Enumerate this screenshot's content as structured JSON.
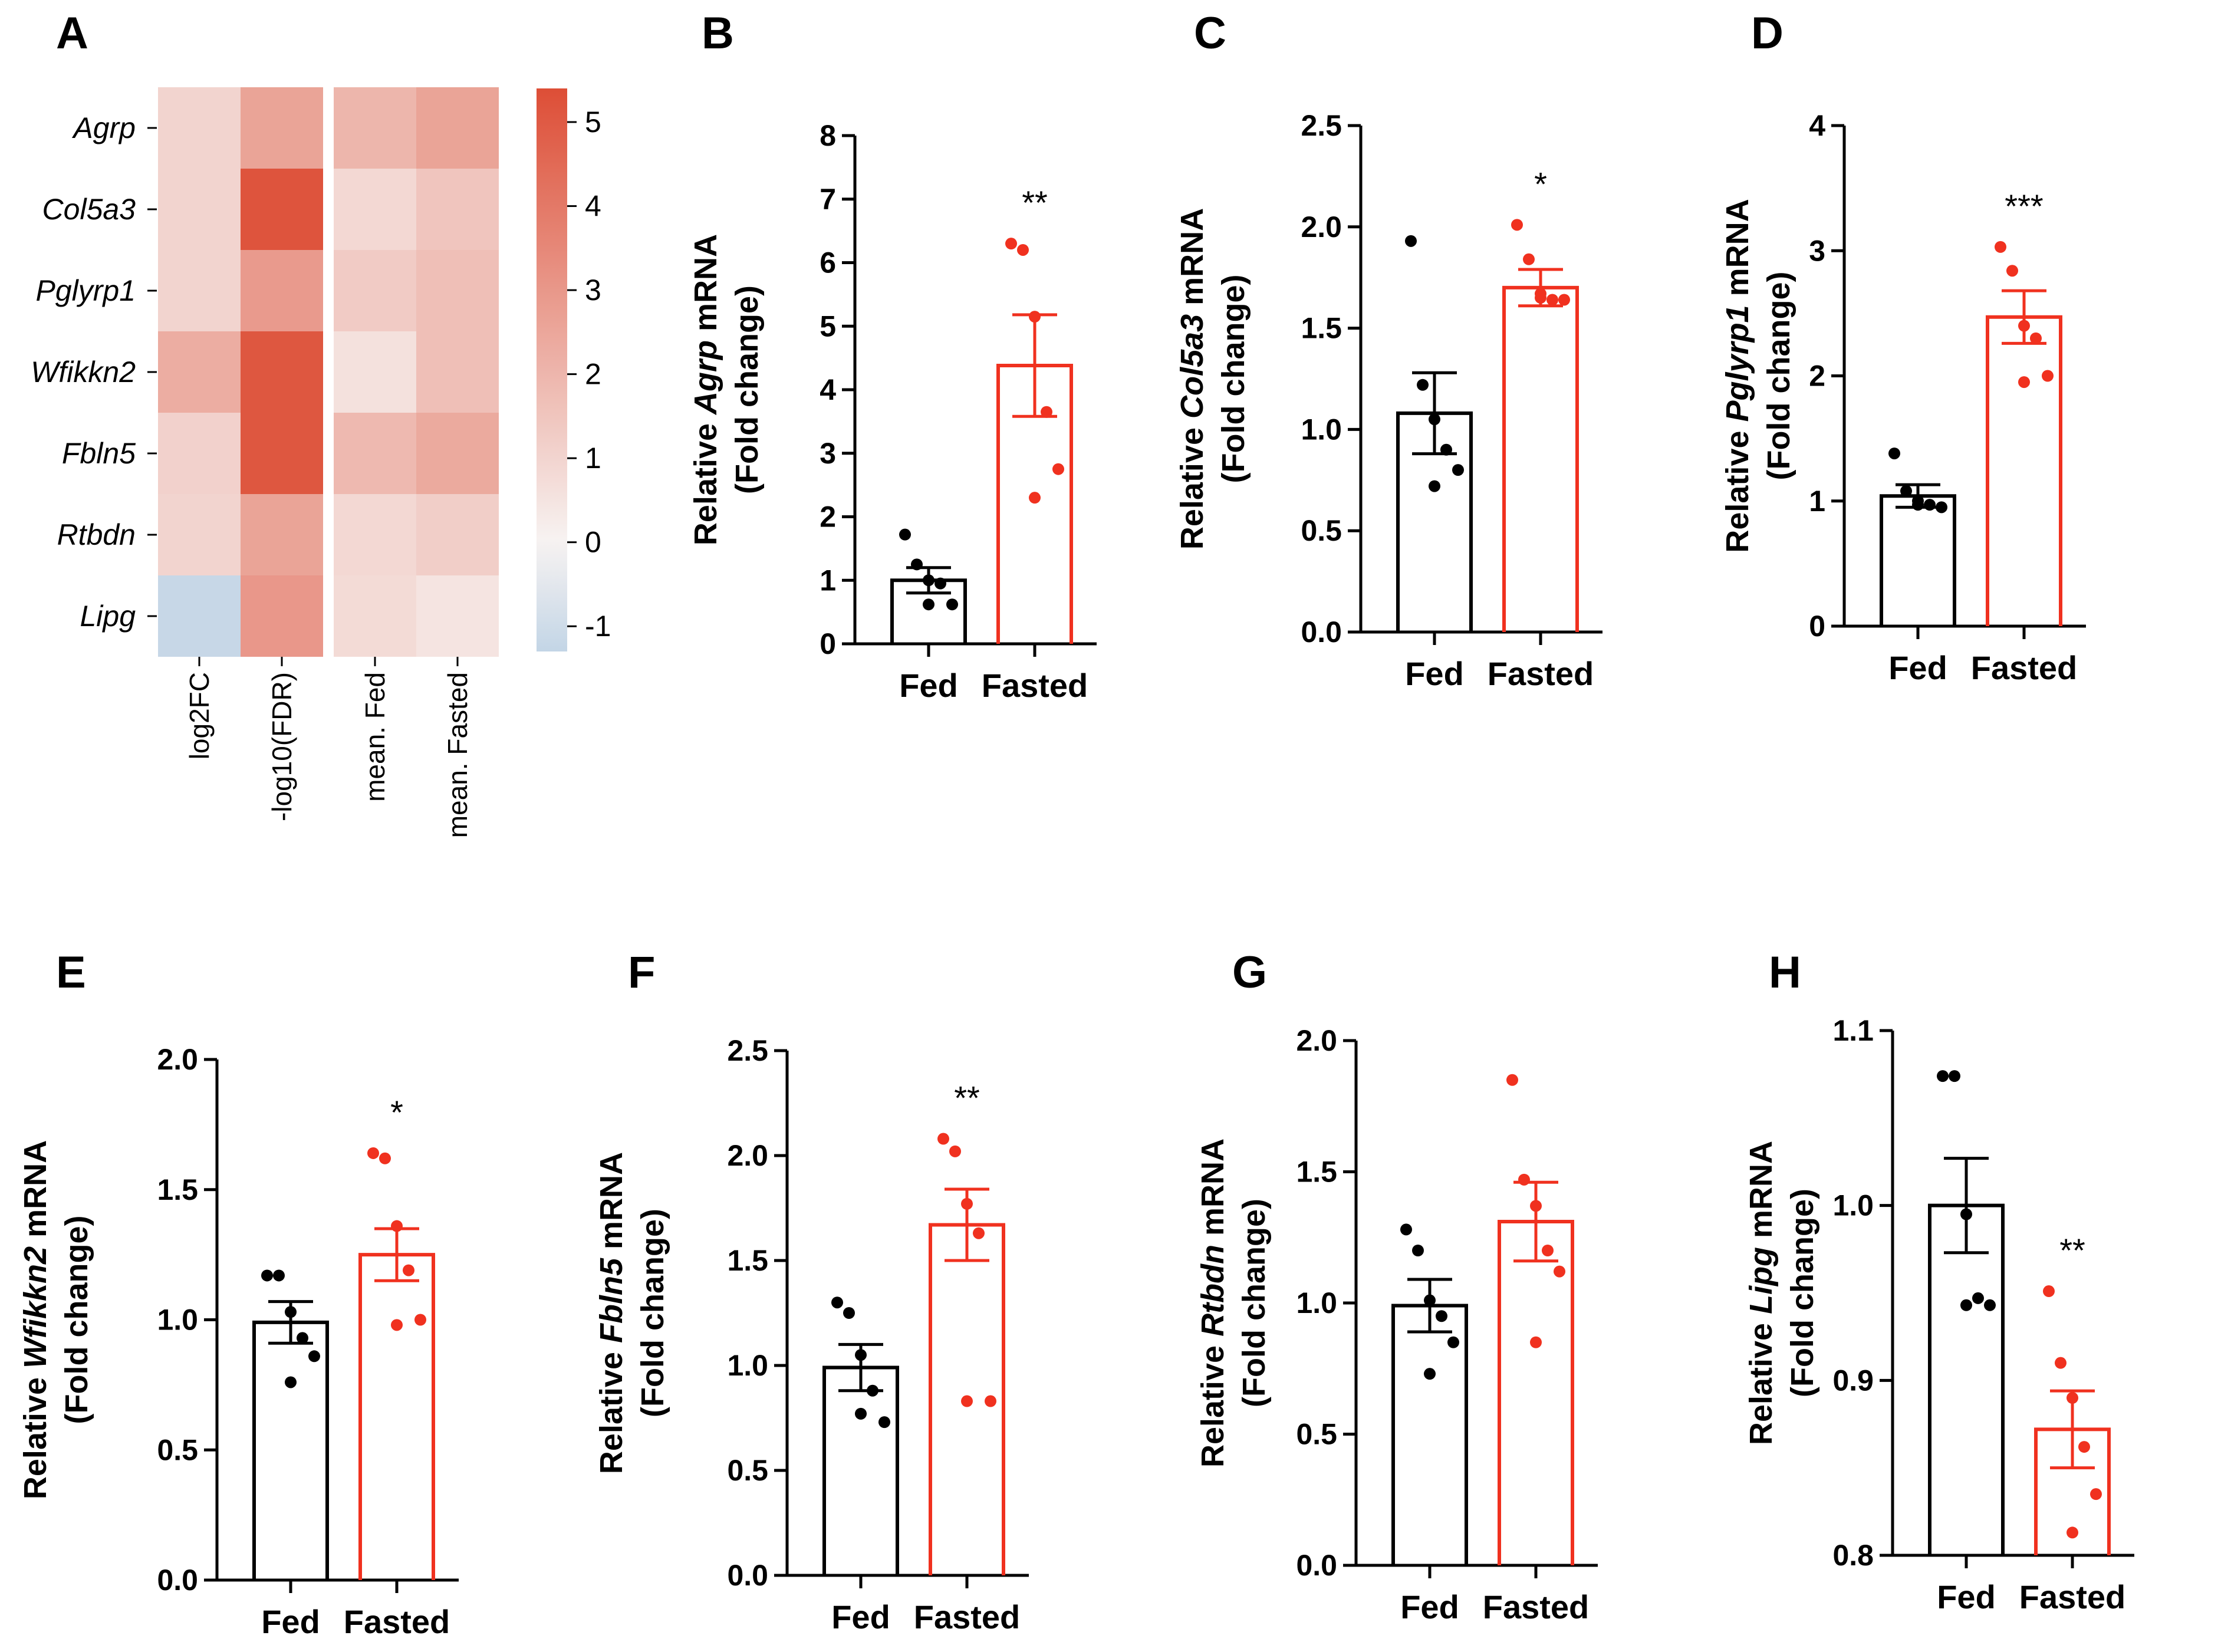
{
  "colors": {
    "fed": "#000000",
    "fasted": "#f0311f",
    "hm_low": "#c3d5e6",
    "hm_mid": "#f7f3f2",
    "hm_high": "#dd4e36"
  },
  "chart_data": [
    {
      "panel": "A",
      "type": "heatmap",
      "rows": [
        "Agrp",
        "Col5a3",
        "Pglyrp1",
        "Wfikkn2",
        "Fbln5",
        "Rtbdn",
        "Lipg"
      ],
      "columns": [
        "log2FC",
        "-log10(FDR)",
        "mean. Fed",
        "mean. Fasted"
      ],
      "values": [
        [
          1.0,
          2.6,
          2.0,
          2.6
        ],
        [
          1.0,
          5.2,
          0.9,
          1.5
        ],
        [
          1.0,
          2.9,
          1.3,
          1.7
        ],
        [
          2.3,
          5.1,
          0.6,
          1.7
        ],
        [
          1.1,
          5.1,
          1.9,
          2.4
        ],
        [
          1.0,
          2.6,
          0.9,
          1.2
        ],
        [
          -1.2,
          3.0,
          0.8,
          0.5
        ]
      ],
      "colorbar": {
        "min": -1.3,
        "max": 5.4,
        "ticks": [
          "5",
          "4",
          "3",
          "2",
          "1",
          "0",
          "-1"
        ],
        "tick_values": [
          5,
          4,
          3,
          2,
          1,
          0,
          -1
        ]
      }
    },
    {
      "panel": "B",
      "type": "bar",
      "ylabel_pre": "Relative ",
      "gene": "Agrp",
      "ylabel_post": " mRNA",
      "ylabel2": "(Fold change)",
      "categories": [
        "Fed",
        "Fasted"
      ],
      "ylim": [
        0,
        8
      ],
      "yticks": [
        "0",
        "1",
        "2",
        "3",
        "4",
        "5",
        "6",
        "7",
        "8"
      ],
      "ytick_values": [
        0,
        1,
        2,
        3,
        4,
        5,
        6,
        7,
        8
      ],
      "means": [
        1.0,
        4.38
      ],
      "sem": [
        0.2,
        0.8
      ],
      "points": [
        [
          1.72,
          1.25,
          1.0,
          0.95,
          0.62,
          0.62
        ],
        [
          6.3,
          6.2,
          5.15,
          3.65,
          2.75,
          2.3
        ]
      ],
      "significance": "**"
    },
    {
      "panel": "C",
      "type": "bar",
      "ylabel_pre": "Relative ",
      "gene": "Col5a3",
      "ylabel_post": " mRNA",
      "ylabel2": "(Fold change)",
      "categories": [
        "Fed",
        "Fasted"
      ],
      "ylim": [
        0,
        2.5
      ],
      "yticks": [
        "0.0",
        "0.5",
        "1.0",
        "1.5",
        "2.0",
        "2.5"
      ],
      "ytick_values": [
        0,
        0.5,
        1.0,
        1.5,
        2.0,
        2.5
      ],
      "means": [
        1.08,
        1.7
      ],
      "sem": [
        0.2,
        0.09
      ],
      "points": [
        [
          1.93,
          1.22,
          1.05,
          0.9,
          0.8,
          0.72
        ],
        [
          2.01,
          1.84,
          1.67,
          1.64,
          1.64,
          1.65
        ]
      ],
      "significance": "*"
    },
    {
      "panel": "D",
      "type": "bar",
      "ylabel_pre": "Relative ",
      "gene": "Pglyrp1",
      "ylabel_post": " mRNA",
      "ylabel2": "(Fold change)",
      "categories": [
        "Fed",
        "Fasted"
      ],
      "ylim": [
        0,
        4
      ],
      "yticks": [
        "0",
        "1",
        "2",
        "3",
        "4"
      ],
      "ytick_values": [
        0,
        1,
        2,
        3,
        4
      ],
      "means": [
        1.04,
        2.47
      ],
      "sem": [
        0.09,
        0.21
      ],
      "points": [
        [
          1.38,
          1.08,
          1.0,
          0.97,
          0.95,
          0.97
        ],
        [
          3.03,
          2.84,
          2.4,
          2.3,
          2.0,
          1.95
        ]
      ],
      "significance": "***"
    },
    {
      "panel": "E",
      "type": "bar",
      "ylabel_pre": "Relative ",
      "gene": "Wfikkn2",
      "ylabel_post": " mRNA",
      "ylabel2": "(Fold change)",
      "categories": [
        "Fed",
        "Fasted"
      ],
      "ylim": [
        0,
        2.0
      ],
      "yticks": [
        "0.0",
        "0.5",
        "1.0",
        "1.5",
        "2.0"
      ],
      "ytick_values": [
        0,
        0.5,
        1.0,
        1.5,
        2.0
      ],
      "means": [
        0.99,
        1.25
      ],
      "sem": [
        0.08,
        0.1
      ],
      "points": [
        [
          1.17,
          1.17,
          1.03,
          0.93,
          0.86,
          0.76
        ],
        [
          1.64,
          1.62,
          1.36,
          1.19,
          1.0,
          0.98
        ]
      ],
      "significance": "*"
    },
    {
      "panel": "F",
      "type": "bar",
      "ylabel_pre": "Relative ",
      "gene": "Fbln5",
      "ylabel_post": " mRNA",
      "ylabel2": "(Fold change)",
      "categories": [
        "Fed",
        "Fasted"
      ],
      "ylim": [
        0,
        2.5
      ],
      "yticks": [
        "0.0",
        "0.5",
        "1.0",
        "1.5",
        "2.0",
        "2.5"
      ],
      "ytick_values": [
        0,
        0.5,
        1.0,
        1.5,
        2.0,
        2.5
      ],
      "means": [
        0.99,
        1.67
      ],
      "sem": [
        0.11,
        0.17
      ],
      "points": [
        [
          1.3,
          1.25,
          1.05,
          0.88,
          0.73,
          0.77
        ],
        [
          2.08,
          2.02,
          1.77,
          1.63,
          0.83,
          0.83
        ]
      ],
      "significance": "**"
    },
    {
      "panel": "G",
      "type": "bar",
      "ylabel_pre": "Relative ",
      "gene": "Rtbdn",
      "ylabel_post": " mRNA",
      "ylabel2": "(Fold change)",
      "categories": [
        "Fed",
        "Fasted"
      ],
      "ylim": [
        0,
        2.0
      ],
      "yticks": [
        "0.0",
        "0.5",
        "1.0",
        "1.5",
        "2.0"
      ],
      "ytick_values": [
        0,
        0.5,
        1.0,
        1.5,
        2.0
      ],
      "means": [
        0.99,
        1.31
      ],
      "sem": [
        0.1,
        0.15
      ],
      "points": [
        [
          1.28,
          1.2,
          1.01,
          0.95,
          0.85,
          0.73
        ],
        [
          1.85,
          1.47,
          1.37,
          1.2,
          1.12,
          0.85
        ]
      ],
      "significance": ""
    },
    {
      "panel": "H",
      "type": "bar",
      "ylabel_pre": "Relative ",
      "gene": "Lipg",
      "ylabel_post": " mRNA",
      "ylabel2": "(Fold change)",
      "categories": [
        "Fed",
        "Fasted"
      ],
      "ylim": [
        0.8,
        1.1
      ],
      "yticks": [
        "0.8",
        "0.9",
        "1.0",
        "1.1"
      ],
      "ytick_values": [
        0.8,
        0.9,
        1.0,
        1.1
      ],
      "means": [
        1.0,
        0.872
      ],
      "sem": [
        0.027,
        0.022
      ],
      "points": [
        [
          1.074,
          1.074,
          0.995,
          0.947,
          0.943,
          0.943
        ],
        [
          0.951,
          0.91,
          0.89,
          0.862,
          0.835,
          0.813
        ]
      ],
      "significance": "**"
    }
  ]
}
